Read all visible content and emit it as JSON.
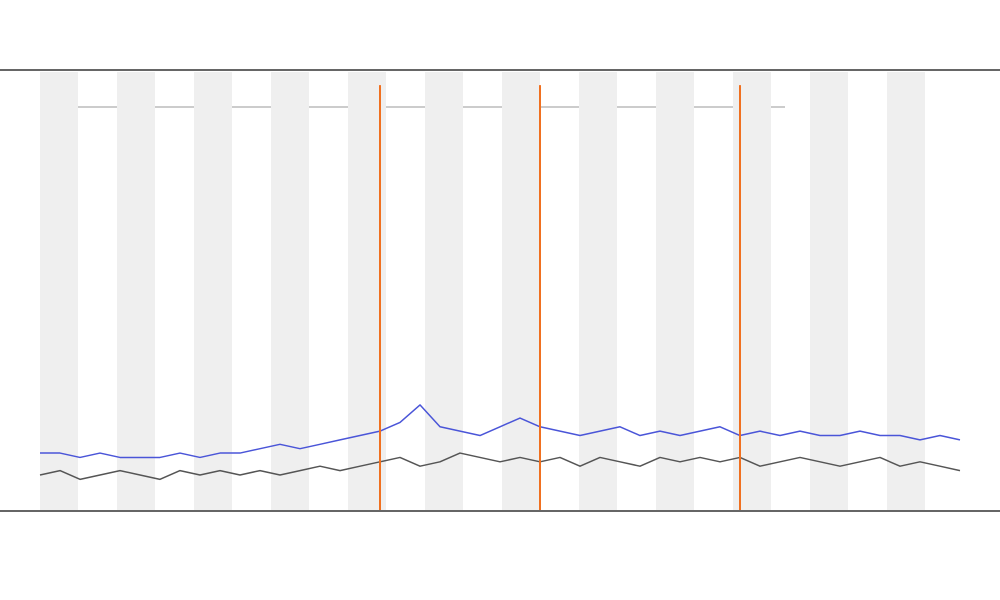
{
  "chart_data": {
    "type": "line",
    "x": [
      0,
      1,
      2,
      3,
      4,
      5,
      6,
      7,
      8,
      9,
      10,
      11,
      12,
      13,
      14,
      15,
      16,
      17,
      18,
      19,
      20,
      21,
      22,
      23,
      24,
      25,
      26,
      27,
      28,
      29,
      30,
      31,
      32,
      33,
      34,
      35,
      36,
      37,
      38,
      39,
      40,
      41,
      42,
      43,
      44,
      45,
      46
    ],
    "xlim": [
      0,
      46
    ],
    "ylim": [
      0,
      100
    ],
    "series": [
      {
        "color": "#555555",
        "style": "line",
        "values": [
          8,
          9,
          7,
          8,
          9,
          8,
          7,
          9,
          8,
          9,
          8,
          9,
          8,
          9,
          10,
          9,
          10,
          11,
          12,
          10,
          11,
          13,
          12,
          11,
          12,
          11,
          12,
          10,
          12,
          11,
          10,
          12,
          11,
          12,
          11,
          12,
          10,
          11,
          12,
          11,
          10,
          11,
          12,
          10,
          11,
          10,
          9
        ]
      },
      {
        "color": "#4a55d8",
        "style": "line",
        "values": [
          13,
          13,
          12,
          13,
          12,
          12,
          12,
          13,
          12,
          13,
          13,
          14,
          15,
          14,
          15,
          16,
          17,
          18,
          20,
          24,
          19,
          18,
          17,
          19,
          21,
          19,
          18,
          17,
          18,
          19,
          17,
          18,
          17,
          18,
          19,
          17,
          18,
          17,
          18,
          17,
          17,
          18,
          17,
          17,
          16,
          17,
          16
        ]
      },
      {
        "color": "#f07020",
        "style": "spike",
        "values": [
          null,
          null,
          null,
          null,
          null,
          null,
          null,
          null,
          null,
          null,
          null,
          null,
          null,
          null,
          null,
          null,
          null,
          97,
          null,
          null,
          null,
          null,
          null,
          null,
          null,
          97,
          null,
          null,
          null,
          null,
          null,
          null,
          null,
          null,
          null,
          97,
          null,
          null,
          null,
          null,
          null,
          null,
          null,
          null,
          null,
          null,
          null
        ]
      }
    ]
  }
}
